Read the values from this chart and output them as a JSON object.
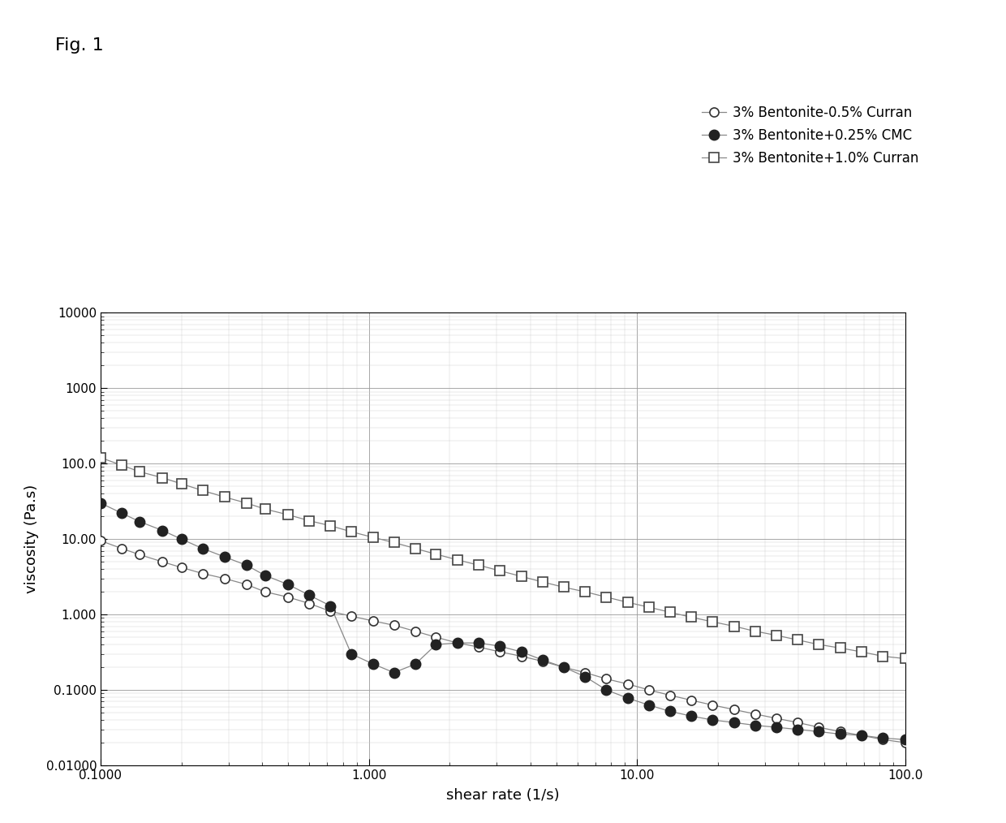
{
  "fig_label": "Fig. 1",
  "xlabel": "shear rate (1/s)",
  "ylabel": "viscosity (Pa.s)",
  "xlim": [
    0.1,
    100.0
  ],
  "ylim": [
    0.01,
    10000
  ],
  "background_color": "#ffffff",
  "legend_labels": [
    "3% Bentonite-0.5% Curran",
    "3% Bentonite+0.25% CMC",
    "3% Bentonite+1.0% Curran"
  ],
  "x_tick_positions": [
    0.1,
    1.0,
    10.0,
    100.0
  ],
  "x_tick_labels": [
    "0.1000",
    "1.000",
    "10.00",
    "100.0"
  ],
  "y_tick_positions": [
    0.01,
    0.1,
    1.0,
    10.0,
    100.0,
    1000.0,
    10000.0
  ],
  "y_tick_labels": [
    "0.01000",
    "0.1000",
    "1.000",
    "10.00",
    "100.0",
    "1000",
    "10000"
  ],
  "series1_x": [
    0.1,
    0.12,
    0.14,
    0.17,
    0.2,
    0.24,
    0.29,
    0.35,
    0.41,
    0.5,
    0.6,
    0.72,
    0.86,
    1.04,
    1.24,
    1.49,
    1.78,
    2.14,
    2.57,
    3.08,
    3.7,
    4.44,
    5.33,
    6.4,
    7.68,
    9.22,
    11.07,
    13.28,
    15.93,
    19.12,
    22.94,
    27.54,
    33.05,
    39.66,
    47.59,
    57.12,
    68.6,
    82.32,
    100.0
  ],
  "series1_y": [
    9.5,
    7.5,
    6.2,
    5.0,
    4.2,
    3.5,
    3.0,
    2.5,
    2.0,
    1.7,
    1.4,
    1.1,
    0.95,
    0.82,
    0.72,
    0.6,
    0.5,
    0.42,
    0.37,
    0.32,
    0.28,
    0.24,
    0.2,
    0.17,
    0.14,
    0.12,
    0.1,
    0.085,
    0.073,
    0.063,
    0.055,
    0.048,
    0.042,
    0.037,
    0.032,
    0.028,
    0.025,
    0.022,
    0.02
  ],
  "series2_x": [
    0.1,
    0.12,
    0.14,
    0.17,
    0.2,
    0.24,
    0.29,
    0.35,
    0.41,
    0.5,
    0.6,
    0.72,
    0.86,
    1.04,
    1.24,
    1.49,
    1.78,
    2.14,
    2.57,
    3.08,
    3.7,
    4.44,
    5.33,
    6.4,
    7.68,
    9.22,
    11.07,
    13.28,
    15.93,
    19.12,
    22.94,
    27.54,
    33.05,
    39.66,
    47.59,
    57.12,
    68.6,
    82.32,
    100.0
  ],
  "series2_y": [
    30.0,
    22.0,
    17.0,
    13.0,
    10.0,
    7.5,
    5.8,
    4.5,
    3.3,
    2.5,
    1.8,
    1.3,
    0.3,
    0.22,
    0.17,
    0.22,
    0.4,
    0.42,
    0.42,
    0.38,
    0.32,
    0.25,
    0.2,
    0.15,
    0.1,
    0.078,
    0.063,
    0.052,
    0.045,
    0.04,
    0.037,
    0.034,
    0.032,
    0.03,
    0.028,
    0.026,
    0.025,
    0.023,
    0.022
  ],
  "series3_x": [
    0.1,
    0.12,
    0.14,
    0.17,
    0.2,
    0.24,
    0.29,
    0.35,
    0.41,
    0.5,
    0.6,
    0.72,
    0.86,
    1.04,
    1.24,
    1.49,
    1.78,
    2.14,
    2.57,
    3.08,
    3.7,
    4.44,
    5.33,
    6.4,
    7.68,
    9.22,
    11.07,
    13.28,
    15.93,
    19.12,
    22.94,
    27.54,
    33.05,
    39.66,
    47.59,
    57.12,
    68.6,
    82.32,
    100.0
  ],
  "series3_y": [
    120.0,
    95.0,
    78.0,
    65.0,
    54.0,
    44.0,
    36.0,
    30.0,
    25.0,
    21.0,
    17.5,
    15.0,
    12.5,
    10.5,
    9.0,
    7.5,
    6.3,
    5.3,
    4.5,
    3.8,
    3.2,
    2.7,
    2.3,
    2.0,
    1.7,
    1.45,
    1.25,
    1.07,
    0.92,
    0.8,
    0.7,
    0.6,
    0.53,
    0.46,
    0.4,
    0.36,
    0.32,
    0.28,
    0.26
  ]
}
